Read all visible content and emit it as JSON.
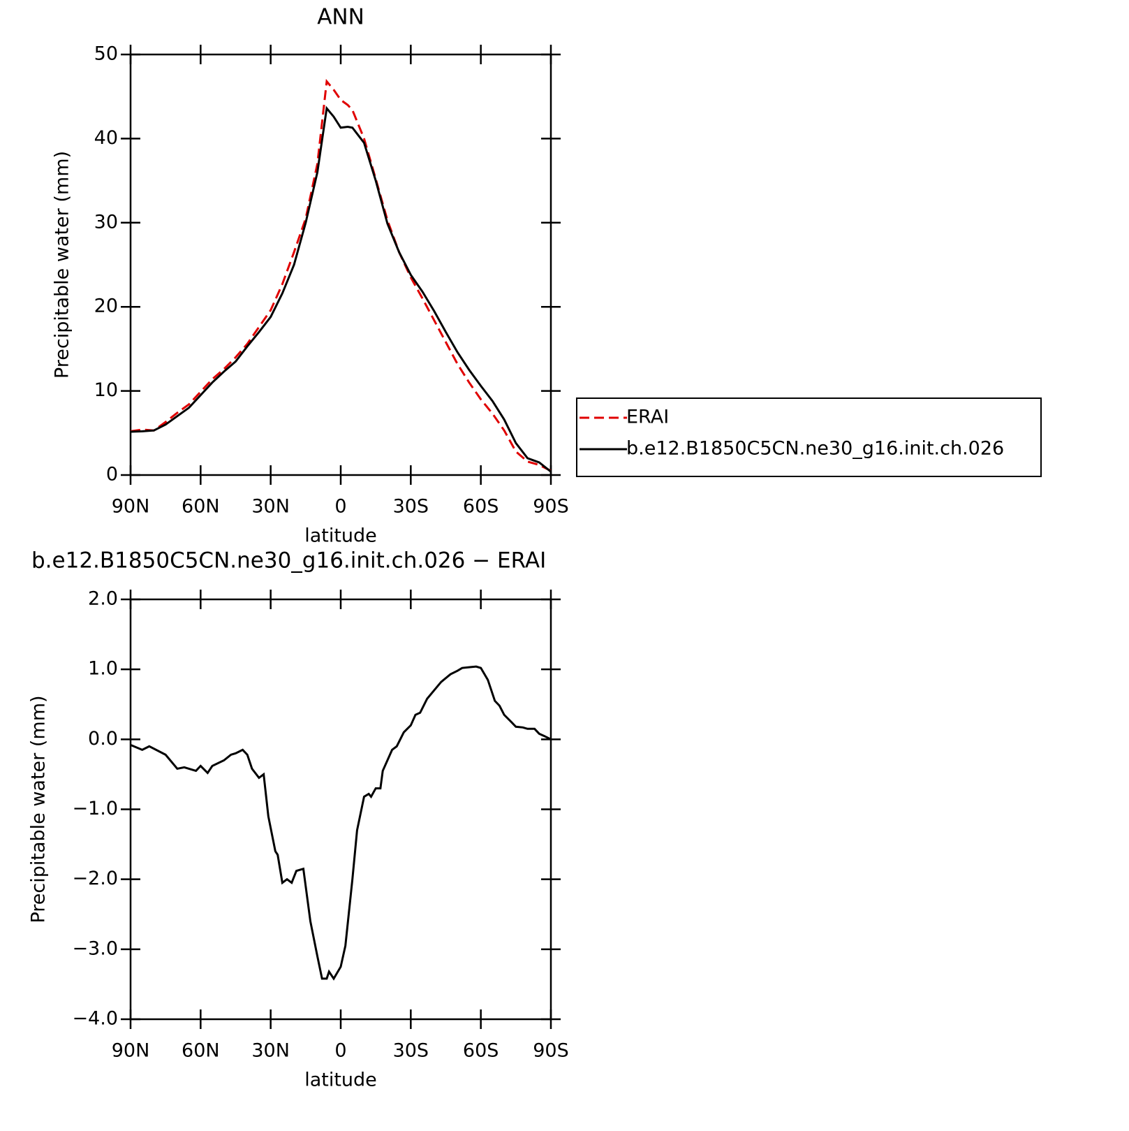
{
  "chart_data": [
    {
      "type": "line",
      "title": "ANN",
      "xlabel": "latitude",
      "ylabel": "Precipitable water (mm)",
      "x": [
        90,
        85,
        80,
        75,
        70,
        65,
        60,
        55,
        50,
        45,
        40,
        35,
        30,
        25,
        20,
        15,
        10,
        6,
        3,
        0,
        -3,
        -5,
        -10,
        -15,
        -20,
        -25,
        -30,
        -35,
        -40,
        -45,
        -50,
        -55,
        -60,
        -65,
        -70,
        -75,
        -80,
        -85,
        -90
      ],
      "series": [
        {
          "name": "ERAI",
          "color": "#e00000",
          "line_style": "dashed",
          "values": [
            5.2,
            5.4,
            5.3,
            6.3,
            7.4,
            8.4,
            9.9,
            11.4,
            12.6,
            14.0,
            15.6,
            17.6,
            19.6,
            22.7,
            26.5,
            30.5,
            37.0,
            46.8,
            45.8,
            44.6,
            44.0,
            43.4,
            40.0,
            35.2,
            30.3,
            26.5,
            23.5,
            21.0,
            18.4,
            15.8,
            13.2,
            11.0,
            9.0,
            7.3,
            5.3,
            2.8,
            1.6,
            1.2,
            0.5
          ]
        },
        {
          "name": "b.e12.B1850C5CN.ne30_g16.init.ch.026",
          "color": "#000000",
          "line_style": "solid",
          "values": [
            5.15,
            5.2,
            5.3,
            6.0,
            7.0,
            8.0,
            9.5,
            11.0,
            12.3,
            13.5,
            15.3,
            17.0,
            18.8,
            21.6,
            25.0,
            30.0,
            36.0,
            43.6,
            42.6,
            41.3,
            41.4,
            41.3,
            39.5,
            35.0,
            29.9,
            26.5,
            23.8,
            21.8,
            19.5,
            17.0,
            14.6,
            12.5,
            10.6,
            8.8,
            6.6,
            3.8,
            2.0,
            1.5,
            0.4
          ]
        }
      ],
      "xlim": [
        90,
        -90
      ],
      "xticks": [
        {
          "value": 90,
          "label": "90N"
        },
        {
          "value": 60,
          "label": "60N"
        },
        {
          "value": 30,
          "label": "30N"
        },
        0,
        {
          "value": -30,
          "label": "30S"
        },
        {
          "value": -60,
          "label": "60S"
        },
        {
          "value": -90,
          "label": "90S"
        }
      ],
      "ylim": [
        0,
        50
      ],
      "yticks": [
        0,
        10,
        20,
        30,
        40,
        50
      ],
      "legend": "right"
    },
    {
      "type": "line",
      "title": "b.e12.B1850C5CN.ne30_g16.init.ch.026 − ERAI",
      "xlabel": "latitude",
      "ylabel": "Precipitable water (mm)",
      "x": [
        90,
        85,
        82,
        75,
        70,
        67,
        62,
        60,
        57,
        55,
        50,
        47,
        45,
        42,
        40,
        38,
        35,
        33,
        31,
        28,
        27,
        25,
        23,
        21,
        19,
        16,
        13,
        10,
        8,
        6,
        5,
        3,
        0,
        -2,
        -5,
        -7,
        -10,
        -12,
        -13,
        -15,
        -17,
        -18,
        -22,
        -24,
        -27,
        -30,
        -32,
        -34,
        -37,
        -40,
        -43,
        -47,
        -50,
        -52,
        -55,
        -58,
        -60,
        -63,
        -66,
        -68,
        -70,
        -73,
        -75,
        -78,
        -80,
        -83,
        -85,
        -87,
        -90
      ],
      "series": [
        {
          "name": "b.e12.B1850C5CN.ne30_g16.init.ch.026 − ERAI",
          "color": "#000000",
          "line_style": "solid",
          "values": [
            -0.08,
            -0.15,
            -0.1,
            -0.22,
            -0.42,
            -0.4,
            -0.45,
            -0.38,
            -0.48,
            -0.38,
            -0.3,
            -0.22,
            -0.2,
            -0.15,
            -0.22,
            -0.42,
            -0.55,
            -0.5,
            -1.1,
            -1.6,
            -1.65,
            -2.05,
            -2.0,
            -2.05,
            -1.88,
            -1.85,
            -2.6,
            -3.1,
            -3.42,
            -3.42,
            -3.32,
            -3.42,
            -3.25,
            -2.95,
            -2.0,
            -1.3,
            -0.82,
            -0.78,
            -0.82,
            -0.7,
            -0.7,
            -0.45,
            -0.15,
            -0.1,
            0.1,
            0.2,
            0.35,
            0.38,
            0.58,
            0.7,
            0.82,
            0.93,
            0.98,
            1.02,
            1.03,
            1.04,
            1.02,
            0.85,
            0.55,
            0.48,
            0.35,
            0.25,
            0.18,
            0.17,
            0.15,
            0.15,
            0.08,
            0.05,
            0.0
          ]
        }
      ],
      "xlim": [
        90,
        -90
      ],
      "xticks": [
        {
          "value": 90,
          "label": "90N"
        },
        {
          "value": 60,
          "label": "60N"
        },
        {
          "value": 30,
          "label": "30N"
        },
        0,
        {
          "value": -30,
          "label": "30S"
        },
        {
          "value": -60,
          "label": "60S"
        },
        {
          "value": -90,
          "label": "90S"
        }
      ],
      "ylim": [
        -4,
        2
      ],
      "yticks": [
        {
          "value": -4,
          "label": "−4.0"
        },
        {
          "value": -3,
          "label": "−3.0"
        },
        {
          "value": -2,
          "label": "−2.0"
        },
        {
          "value": -1,
          "label": "−1.0"
        },
        {
          "value": 0,
          "label": "0.0"
        },
        {
          "value": 1,
          "label": "1.0"
        },
        {
          "value": 2,
          "label": "2.0"
        }
      ]
    }
  ]
}
